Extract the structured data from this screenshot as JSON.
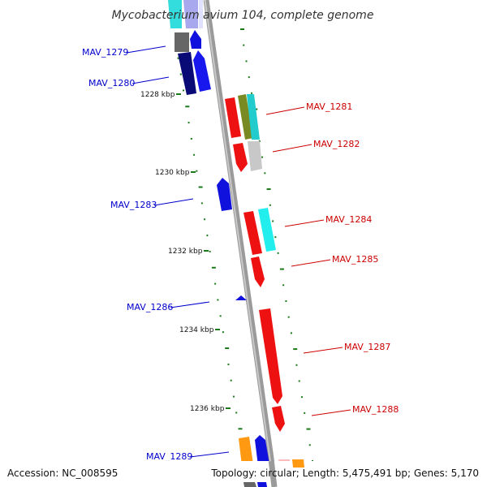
{
  "title": "Mycobacterium avium 104, complete genome",
  "accession_text": "Accession: NC_008595",
  "summary_text": "Topology: circular; Length: 5,475,491 bp; Genes: 5,170",
  "colors": {
    "left_label": "#0000cc",
    "right_label": "#cc0000",
    "backbone": "#888888",
    "tick": "#1a7a1a"
  },
  "scale_ticks": [
    {
      "label": "1228 kbp",
      "kbp": 1228
    },
    {
      "label": "1230 kbp",
      "kbp": 1230
    },
    {
      "label": "1232 kbp",
      "kbp": 1232
    },
    {
      "label": "1234 kbp",
      "kbp": 1234
    },
    {
      "label": "1236 kbp",
      "kbp": 1236
    }
  ],
  "gene_labels": [
    {
      "text": "MAV_1279",
      "side": "left"
    },
    {
      "text": "MAV_1280",
      "side": "left"
    },
    {
      "text": "MAV_1281",
      "side": "right"
    },
    {
      "text": "MAV_1282",
      "side": "right"
    },
    {
      "text": "MAV_1283",
      "side": "left"
    },
    {
      "text": "MAV_1284",
      "side": "right"
    },
    {
      "text": "MAV_1285",
      "side": "right"
    },
    {
      "text": "MAV_1286",
      "side": "left"
    },
    {
      "text": "MAV_1287",
      "side": "right"
    },
    {
      "text": "MAV_1288",
      "side": "right"
    },
    {
      "text": "MAV_1289",
      "side": "left"
    }
  ]
}
